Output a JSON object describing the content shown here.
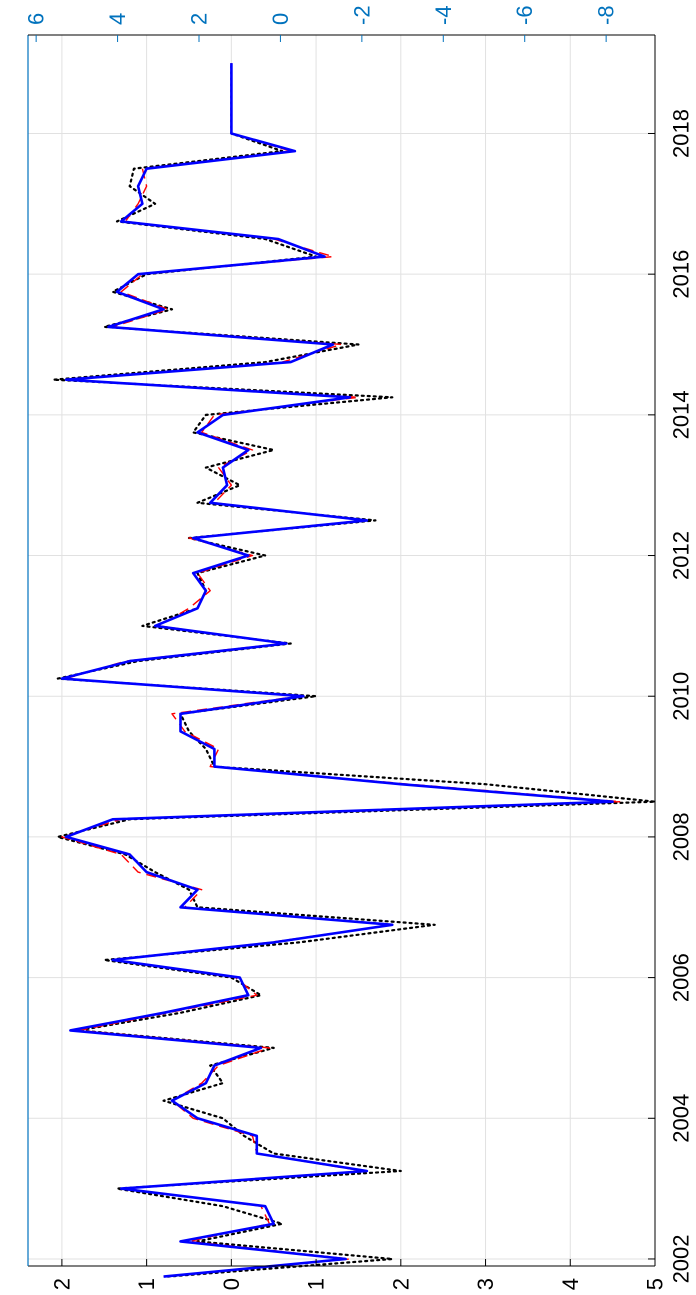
{
  "chart_data": {
    "type": "line",
    "orientation": "rotated-90-clockwise",
    "xlabel": "",
    "ylabel": "",
    "xlim": [
      2001.9,
      2019.4
    ],
    "x_ticks": [
      2002,
      2004,
      2006,
      2008,
      2010,
      2012,
      2014,
      2016,
      2018
    ],
    "ylim_left": [
      -5,
      2.4
    ],
    "y_ticks_left": [
      "2",
      "1",
      "0",
      "-1",
      "-2",
      "-3",
      "-4",
      "-5"
    ],
    "y_tick_values_left": [
      2,
      1,
      0,
      -1,
      -2,
      -3,
      -4,
      -5
    ],
    "ylim_right": [
      -9.2,
      6.2
    ],
    "y_ticks_right": [
      "6",
      "4",
      "2",
      "0",
      "-2",
      "-4",
      "-6",
      "-8"
    ],
    "y_tick_values_right": [
      6,
      4,
      2,
      0,
      -2,
      -4,
      -6,
      -8
    ],
    "grid": true,
    "colors": {
      "axis_left": "#000000",
      "axis_right": "#0072BD",
      "series_blue": "#0000FF",
      "series_red": "#FF0000",
      "series_black": "#000000",
      "grid": "#e1e1e1"
    },
    "x": [
      2001.75,
      2002.0,
      2002.25,
      2002.5,
      2002.75,
      2003.0,
      2003.25,
      2003.5,
      2003.75,
      2004.0,
      2004.25,
      2004.5,
      2004.75,
      2005.0,
      2005.25,
      2005.5,
      2005.75,
      2006.0,
      2006.25,
      2006.5,
      2006.75,
      2007.0,
      2007.25,
      2007.5,
      2007.75,
      2008.0,
      2008.25,
      2008.5,
      2008.75,
      2009.0,
      2009.25,
      2009.5,
      2009.75,
      2010.0,
      2010.25,
      2010.5,
      2010.75,
      2011.0,
      2011.25,
      2011.5,
      2011.75,
      2012.0,
      2012.25,
      2012.5,
      2012.75,
      2013.0,
      2013.25,
      2013.5,
      2013.75,
      2014.0,
      2014.25,
      2014.5,
      2014.75,
      2015.0,
      2015.25,
      2015.5,
      2015.75,
      2016.0,
      2016.25,
      2016.5,
      2016.75,
      2017.0,
      2017.25,
      2017.5,
      2017.75,
      2018.0,
      2018.25,
      2018.5,
      2018.75,
      2019.0
    ],
    "series": [
      {
        "style": "solid",
        "color": "#0000FF",
        "values": [
          0.8,
          -1.35,
          0.6,
          -0.5,
          -0.4,
          1.3,
          -1.6,
          -0.3,
          -0.3,
          0.4,
          0.7,
          0.3,
          0.2,
          -0.35,
          1.9,
          0.8,
          -0.2,
          -0.1,
          1.4,
          -0.5,
          -1.9,
          0.6,
          0.4,
          1.0,
          1.2,
          1.95,
          1.4,
          -4.5,
          -2.0,
          0.2,
          0.2,
          0.6,
          0.6,
          -0.85,
          2.0,
          1.2,
          -0.65,
          0.9,
          0.4,
          0.3,
          0.45,
          -0.2,
          0.45,
          -1.6,
          0.25,
          0.05,
          0.1,
          -0.2,
          0.4,
          0.1,
          -1.4,
          1.95,
          -0.7,
          -1.2,
          1.45,
          0.8,
          1.35,
          1.1,
          -1.1,
          -0.55,
          1.3,
          1.05,
          1.1,
          1.0,
          -0.75,
          0.0,
          0.0,
          0.0,
          0.0,
          0.0
        ]
      },
      {
        "style": "dashed",
        "color": "#FF0000",
        "values": [
          0.8,
          -1.4,
          0.5,
          -0.45,
          -0.35,
          1.25,
          -1.55,
          -0.3,
          -0.25,
          0.45,
          0.7,
          0.35,
          0.15,
          -0.45,
          1.8,
          0.75,
          -0.3,
          -0.05,
          1.4,
          -0.45,
          -1.9,
          0.55,
          0.35,
          1.1,
          1.3,
          2.0,
          1.3,
          -4.6,
          -2.1,
          0.25,
          0.15,
          0.55,
          0.7,
          -0.8,
          1.95,
          1.25,
          -0.6,
          0.85,
          0.5,
          0.25,
          0.4,
          -0.25,
          0.5,
          -1.55,
          0.2,
          0.0,
          0.15,
          -0.25,
          0.35,
          0.2,
          -1.5,
          1.9,
          -0.6,
          -1.3,
          1.4,
          0.75,
          1.3,
          1.05,
          -1.2,
          -0.5,
          1.25,
          1.1,
          1.0,
          1.05,
          -0.7,
          0.0,
          0.0,
          0.0,
          0.0,
          0.0
        ]
      },
      {
        "style": "dotted",
        "color": "#000000",
        "values": [
          0.75,
          -1.9,
          0.4,
          -0.6,
          0.1,
          1.35,
          -2.0,
          -0.5,
          -0.15,
          0.1,
          0.8,
          0.1,
          0.25,
          -0.5,
          1.8,
          0.6,
          -0.35,
          0.0,
          1.5,
          -0.8,
          -2.4,
          0.4,
          0.5,
          0.9,
          1.25,
          2.05,
          1.2,
          -5.0,
          -3.0,
          0.2,
          0.3,
          0.5,
          0.6,
          -1.0,
          2.05,
          1.1,
          -0.7,
          1.05,
          0.4,
          0.3,
          0.4,
          -0.4,
          0.5,
          -1.7,
          0.4,
          -0.1,
          0.3,
          -0.5,
          0.45,
          0.3,
          -1.9,
          2.1,
          -0.4,
          -1.5,
          1.5,
          0.7,
          1.4,
          1.0,
          -1.0,
          -0.4,
          1.35,
          0.9,
          1.2,
          1.15,
          -0.6,
          0.0,
          0.0,
          0.0,
          0.0,
          0.0
        ]
      }
    ]
  }
}
